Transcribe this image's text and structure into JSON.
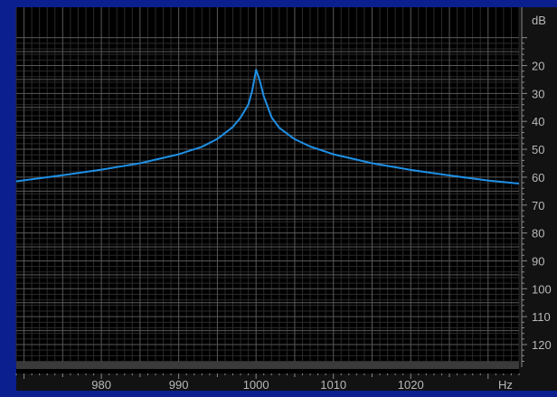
{
  "chart_data": {
    "type": "line",
    "title": "",
    "xlabel": "Hz",
    "ylabel": "dB",
    "x_unit_label": "Hz",
    "y_unit_label": "dB",
    "xlim": [
      969,
      1034
    ],
    "ylim": [
      128,
      8
    ],
    "x_ticks": [
      980,
      990,
      1000,
      1010,
      1020
    ],
    "x_tick_labels": [
      "980",
      "990",
      "1000",
      "1010",
      "1020"
    ],
    "y_ticks": [
      20,
      30,
      40,
      50,
      60,
      70,
      80,
      90,
      100,
      110,
      120
    ],
    "y_tick_labels": [
      "20",
      "30",
      "40",
      "50",
      "60",
      "70",
      "80",
      "90",
      "100",
      "110",
      "120"
    ],
    "grid": true,
    "series": [
      {
        "values_x": [
          969,
          975,
          980,
          985,
          990,
          993,
          995,
          997,
          998,
          999,
          999.5,
          1000,
          1000.5,
          1001,
          1002,
          1003,
          1005,
          1007,
          1010,
          1015,
          1020,
          1025,
          1030,
          1034
        ],
        "values_y": [
          61.5,
          59.3,
          57.3,
          55.0,
          51.8,
          49.1,
          46.3,
          42.0,
          38.6,
          34.0,
          29,
          21.5,
          25.5,
          31.0,
          38.5,
          42.3,
          46.4,
          49.0,
          51.8,
          55.0,
          57.4,
          59.4,
          61.2,
          62.3
        ],
        "color": "#1e90e6"
      }
    ]
  },
  "colors": {
    "background_frame": "#0b1f8f",
    "plot_background": "#000000",
    "grid_major": "#585858",
    "grid_minor": "#2a2a2a",
    "axis_panel": "#121212",
    "tick_text": "#b8b8b8",
    "line": "#1e90e6"
  }
}
